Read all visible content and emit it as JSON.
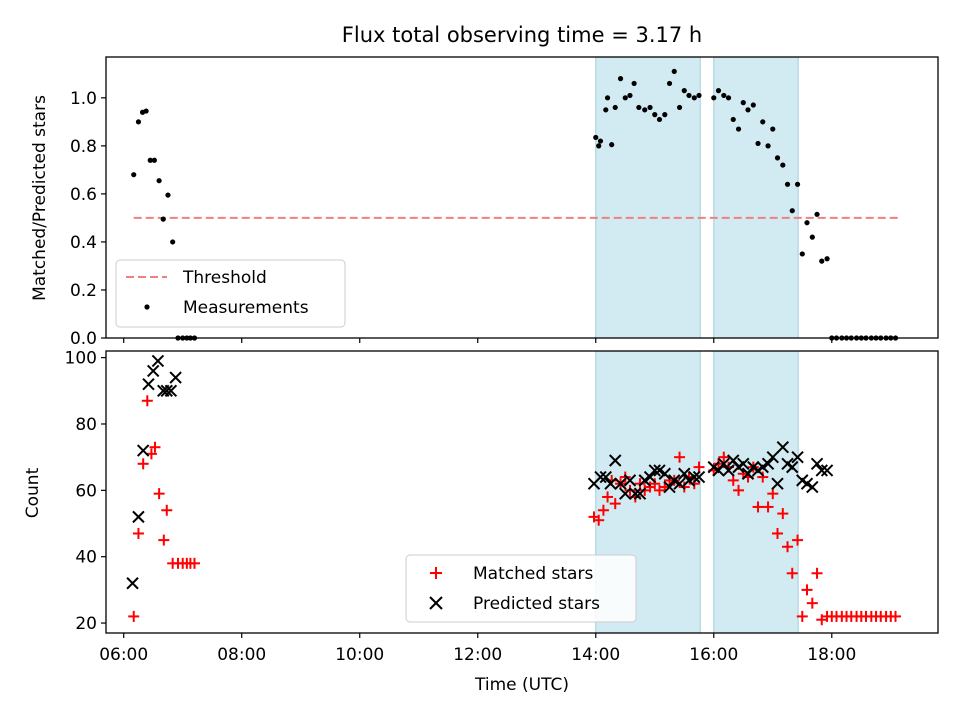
{
  "chart_data": [
    {
      "type": "scatter",
      "title": "Flux total observing time = 3.17 h",
      "xlabel": "",
      "ylabel": "Matched/Predicted stars",
      "xlim_hours": [
        5.7,
        19.8
      ],
      "ylim": [
        0,
        1.17
      ],
      "yticks": [
        0.0,
        0.2,
        0.4,
        0.6,
        0.8,
        1.0
      ],
      "ytick_labels": [
        "0.0",
        "0.2",
        "0.4",
        "0.6",
        "0.8",
        "1.0"
      ],
      "grid": false,
      "legend_position": "lower-left",
      "shaded_intervals_hours": [
        [
          14.0,
          15.77
        ],
        [
          16.0,
          17.43
        ]
      ],
      "shade_color": "#add8e6",
      "threshold": {
        "name": "Threshold",
        "value": 0.5,
        "x_range_hours": [
          6.17,
          19.12
        ],
        "color": "#f08080"
      },
      "series": [
        {
          "name": "Measurements",
          "marker": "dot",
          "color": "#000000",
          "x_hours": [
            6.17,
            6.25,
            6.32,
            6.38,
            6.45,
            6.52,
            6.6,
            6.67,
            6.75,
            6.83,
            6.92,
            7.0,
            7.07,
            7.13,
            7.2,
            14.0,
            14.05,
            14.08,
            14.17,
            14.2,
            14.27,
            14.33,
            14.42,
            14.5,
            14.58,
            14.65,
            14.73,
            14.83,
            14.92,
            15.0,
            15.08,
            15.17,
            15.25,
            15.33,
            15.42,
            15.5,
            15.58,
            15.67,
            15.75,
            16.0,
            16.08,
            16.17,
            16.25,
            16.33,
            16.42,
            16.5,
            16.58,
            16.67,
            16.75,
            16.83,
            16.92,
            17.0,
            17.08,
            17.17,
            17.25,
            17.33,
            17.42,
            17.5,
            17.58,
            17.67,
            17.75,
            17.83,
            17.92,
            18.0,
            18.08,
            18.17,
            18.25,
            18.33,
            18.42,
            18.5,
            18.58,
            18.67,
            18.75,
            18.83,
            18.92,
            19.0,
            19.08
          ],
          "y": [
            0.68,
            0.9,
            0.94,
            0.945,
            0.74,
            0.74,
            0.655,
            0.495,
            0.595,
            0.4,
            0.0,
            0.0,
            0.0,
            0.0,
            0.0,
            0.835,
            0.8,
            0.82,
            0.95,
            1.0,
            0.805,
            0.96,
            1.08,
            1.0,
            1.01,
            1.06,
            0.96,
            0.95,
            0.96,
            0.93,
            0.91,
            0.93,
            1.06,
            1.11,
            0.96,
            1.03,
            1.01,
            1.0,
            1.01,
            1.0,
            1.03,
            1.01,
            1.0,
            0.91,
            0.87,
            0.98,
            0.95,
            0.97,
            0.81,
            0.9,
            0.8,
            0.87,
            0.75,
            0.72,
            0.64,
            0.53,
            0.64,
            0.35,
            0.48,
            0.42,
            0.515,
            0.32,
            0.33,
            0.0,
            0.0,
            0.0,
            0.0,
            0.0,
            0.0,
            0.0,
            0.0,
            0.0,
            0.0,
            0.0,
            0.0,
            0.0,
            0.0
          ]
        }
      ]
    },
    {
      "type": "scatter",
      "title": "",
      "xlabel": "Time (UTC)",
      "ylabel": "Count",
      "xlim_hours": [
        5.7,
        19.8
      ],
      "ylim": [
        17,
        102
      ],
      "yticks": [
        20,
        40,
        60,
        80,
        100
      ],
      "ytick_labels": [
        "20",
        "40",
        "60",
        "80",
        "100"
      ],
      "xticks_hours": [
        6,
        8,
        10,
        12,
        14,
        16,
        18
      ],
      "xtick_labels": [
        "06:00",
        "08:00",
        "10:00",
        "12:00",
        "14:00",
        "16:00",
        "18:00"
      ],
      "grid": false,
      "legend_position": "lower-center",
      "shaded_intervals_hours": [
        [
          14.0,
          15.77
        ],
        [
          16.0,
          17.43
        ]
      ],
      "shade_color": "#add8e6",
      "series": [
        {
          "name": "Matched stars",
          "marker": "plus",
          "color": "#ff0000",
          "x_hours": [
            6.17,
            6.25,
            6.33,
            6.4,
            6.47,
            6.53,
            6.6,
            6.68,
            6.73,
            6.83,
            6.92,
            7.0,
            7.07,
            7.13,
            7.2,
            13.97,
            14.05,
            14.13,
            14.2,
            14.27,
            14.33,
            14.42,
            14.5,
            14.58,
            14.67,
            14.75,
            14.83,
            14.92,
            15.0,
            15.08,
            15.17,
            15.25,
            15.33,
            15.42,
            15.5,
            15.58,
            15.67,
            15.75,
            16.0,
            16.08,
            16.17,
            16.25,
            16.33,
            16.42,
            16.5,
            16.58,
            16.67,
            16.75,
            16.83,
            16.92,
            17.0,
            17.08,
            17.17,
            17.25,
            17.33,
            17.42,
            17.5,
            17.58,
            17.67,
            17.75,
            17.83,
            17.92,
            18.0,
            18.08,
            18.17,
            18.25,
            18.33,
            18.42,
            18.5,
            18.58,
            18.67,
            18.75,
            18.83,
            18.92,
            19.0,
            19.08
          ],
          "y": [
            22,
            47,
            68,
            87,
            71,
            73,
            59,
            45,
            54,
            38,
            38,
            38,
            38,
            38,
            38,
            52,
            51,
            54,
            58,
            63,
            56,
            62,
            64,
            60,
            58,
            62,
            60,
            61,
            62,
            60,
            61,
            63,
            63,
            70,
            61,
            64,
            62,
            67,
            66,
            68,
            70,
            67,
            63,
            60,
            65,
            64,
            67,
            55,
            64,
            55,
            59,
            47,
            53,
            43,
            35,
            45,
            22,
            30,
            26,
            35,
            21,
            22,
            22,
            22,
            22,
            22,
            22,
            22,
            22,
            22,
            22,
            22,
            22,
            22,
            22,
            22
          ],
          "x_extra_comment": ""
        },
        {
          "name": "Predicted stars",
          "marker": "x",
          "color": "#000000",
          "x_hours": [
            6.15,
            6.25,
            6.33,
            6.42,
            6.5,
            6.58,
            6.67,
            6.73,
            6.8,
            6.88,
            13.97,
            14.08,
            14.17,
            14.25,
            14.33,
            14.42,
            14.5,
            14.58,
            14.67,
            14.75,
            14.83,
            14.92,
            15.0,
            15.08,
            15.17,
            15.25,
            15.33,
            15.42,
            15.5,
            15.58,
            15.67,
            15.75,
            16.0,
            16.08,
            16.17,
            16.25,
            16.33,
            16.42,
            16.5,
            16.58,
            16.67,
            16.75,
            16.83,
            16.92,
            17.0,
            17.08,
            17.17,
            17.25,
            17.33,
            17.42,
            17.5,
            17.58,
            17.67,
            17.75,
            17.83,
            17.92
          ],
          "y": [
            32,
            52,
            72,
            92,
            96,
            99,
            90,
            90,
            90,
            94,
            62,
            64,
            64,
            62,
            69,
            62,
            59,
            63,
            59,
            59,
            63,
            64,
            66,
            66,
            65,
            61,
            63,
            62,
            65,
            63,
            64,
            64,
            67,
            66,
            68,
            66,
            69,
            67,
            68,
            65,
            67,
            66,
            67,
            68,
            70,
            62,
            73,
            68,
            67,
            70,
            63,
            62,
            61,
            68,
            66,
            66
          ]
        }
      ]
    }
  ]
}
